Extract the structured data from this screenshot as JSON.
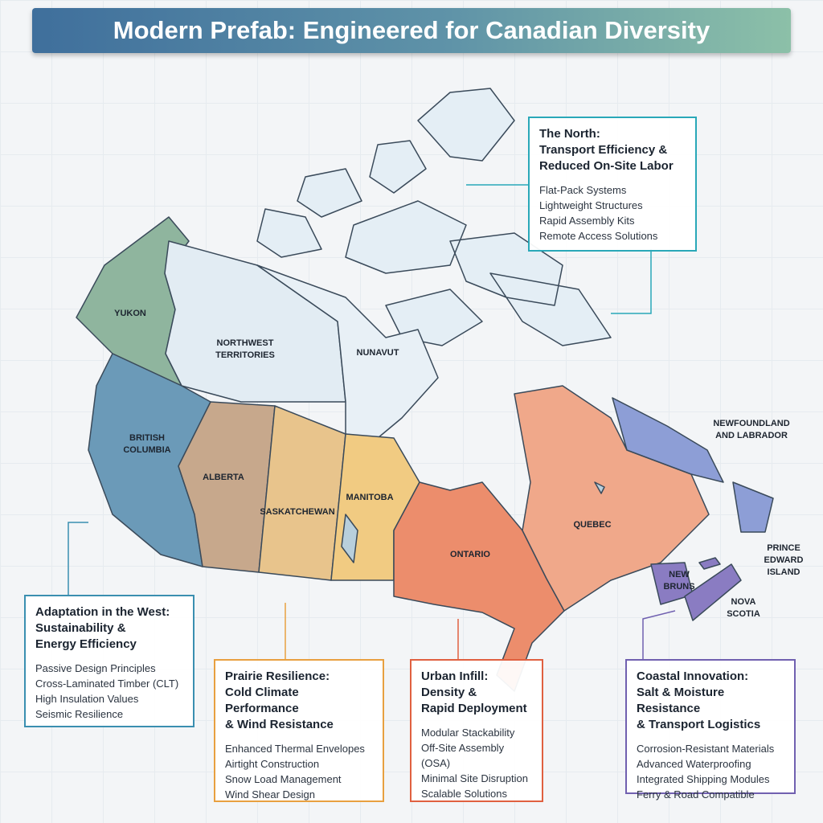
{
  "title": "Modern Prefab: Engineered for Canadian Diversity",
  "regions": [
    {
      "lines": [
        "YUKON"
      ]
    },
    {
      "lines": [
        "NORTHWEST",
        "TERRITORIES"
      ]
    },
    {
      "lines": [
        "NUNAVUT"
      ]
    },
    {
      "lines": [
        "BRITISH",
        "COLUMBIA"
      ]
    },
    {
      "lines": [
        "ALBERTA"
      ]
    },
    {
      "lines": [
        "SASKATCHEWAN"
      ]
    },
    {
      "lines": [
        "MANITOBA"
      ]
    },
    {
      "lines": [
        "ONTARIO"
      ]
    },
    {
      "lines": [
        "QUEBEC"
      ]
    },
    {
      "lines": [
        "NEWFOUNDLAND",
        "AND LABRADOR"
      ]
    },
    {
      "lines": [
        "PRINCE",
        "EDWARD",
        "ISLAND"
      ]
    },
    {
      "lines": [
        "NEW",
        "BRUNS"
      ]
    },
    {
      "lines": [
        "NOVA",
        "SCOTIA"
      ]
    }
  ],
  "callouts": [
    {
      "heading": [
        "The North:",
        "Transport Efficiency &",
        "Reduced On-Site Labor"
      ],
      "items": [
        "Flat-Pack Systems",
        "Lightweight Structures",
        "Rapid Assembly Kits",
        "Remote Access Solutions"
      ]
    },
    {
      "heading": [
        "Adaptation in the West:",
        "Sustainability &",
        "Energy Efficiency"
      ],
      "items": [
        "Passive Design Principles",
        "Cross-Laminated Timber (CLT)",
        "High Insulation Values",
        "Seismic Resilience"
      ]
    },
    {
      "heading": [
        "Prairie Resilience:",
        "Cold Climate Performance",
        "& Wind Resistance"
      ],
      "items": [
        "Enhanced Thermal Envelopes",
        "Airtight Construction",
        "Snow Load Management",
        "Wind Shear Design"
      ]
    },
    {
      "heading": [
        "Urban Infill:",
        "Density &",
        "Rapid Deployment"
      ],
      "items": [
        "Modular Stackability",
        "Off-Site Assembly (OSA)",
        "Minimal Site Disruption",
        "Scalable Solutions"
      ]
    },
    {
      "heading": [
        "Coastal Innovation:",
        "Salt & Moisture Resistance",
        "& Transport Logistics"
      ],
      "items": [
        "Corrosion-Resistant Materials",
        "Advanced Waterproofing",
        "Integrated Shipping Modules",
        "Ferry & Road Compatible"
      ]
    }
  ]
}
